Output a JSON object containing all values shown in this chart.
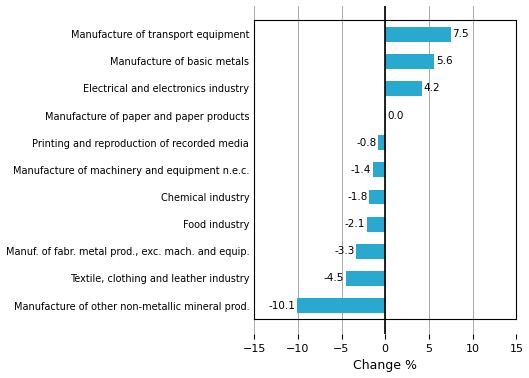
{
  "categories": [
    "Manufacture of other non-metallic mineral prod.",
    "Textile, clothing and leather industry",
    "Manuf. of fabr. metal prod., exc. mach. and equip.",
    "Food industry",
    "Chemical industry",
    "Manufacture of machinery and equipment n.e.c.",
    "Printing and reproduction of recorded media",
    "Manufacture of paper and paper products",
    "Electrical and electronics industry",
    "Manufacture of basic metals",
    "Manufacture of transport equipment"
  ],
  "values": [
    -10.1,
    -4.5,
    -3.3,
    -2.1,
    -1.8,
    -1.4,
    -0.8,
    0.0,
    4.2,
    5.6,
    7.5
  ],
  "bar_color": "#29a9d0",
  "xlabel": "Change %",
  "xlim": [
    -15,
    15
  ],
  "xticks": [
    -15,
    -10,
    -5,
    0,
    5,
    10,
    15
  ],
  "bar_height": 0.55,
  "label_fontsize": 7.0,
  "tick_fontsize": 8.0,
  "xlabel_fontsize": 9,
  "value_fontsize": 7.5,
  "grid_color": "#aaaaaa",
  "spine_color": "#000000"
}
